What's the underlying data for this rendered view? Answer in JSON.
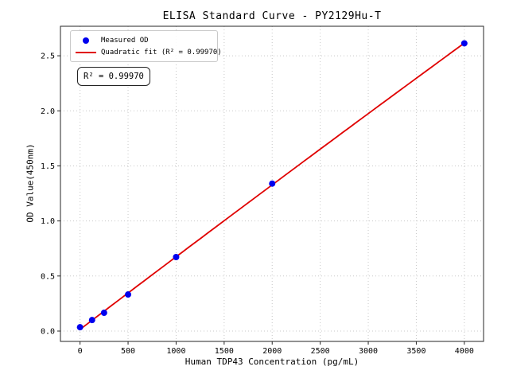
{
  "title": "ELISA Standard Curve - PY2129Hu-T",
  "annotation": {
    "text": "R² = 0.99970"
  },
  "legend": {
    "position": "upper left",
    "items": [
      {
        "type": "marker",
        "label": "Measured OD"
      },
      {
        "type": "line",
        "label": "Quadratic fit (R² = 0.99970)"
      }
    ]
  },
  "colors": {
    "marker": "#0000ee",
    "fit_line": "#e00000",
    "grid": "#c8c8c8",
    "spine": "#262626",
    "text": "#000000"
  },
  "chart_data": {
    "type": "scatter",
    "title": "ELISA Standard Curve - PY2129Hu-T",
    "xlabel": "Human TDP43 Concentration (pg/mL)",
    "ylabel": "OD Value(450nm)",
    "series": [
      {
        "name": "Measured OD",
        "x": [
          0,
          125,
          250,
          500,
          1000,
          2000,
          4000
        ],
        "y": [
          0.035,
          0.1,
          0.166,
          0.332,
          0.672,
          1.339,
          2.613
        ]
      }
    ],
    "fit": {
      "kind": "quadratic",
      "r_squared": 0.9997,
      "range": [
        0,
        4000
      ]
    },
    "xlim": [
      -204,
      4200
    ],
    "ylim": [
      -0.094,
      2.768
    ],
    "xticks": [
      0,
      500,
      1000,
      1500,
      2000,
      2500,
      3000,
      3500,
      4000
    ],
    "yticks": [
      0.0,
      0.5,
      1.0,
      1.5,
      2.0,
      2.5
    ],
    "grid": true,
    "grid_style": "dotted",
    "legend_position": "upper left"
  }
}
